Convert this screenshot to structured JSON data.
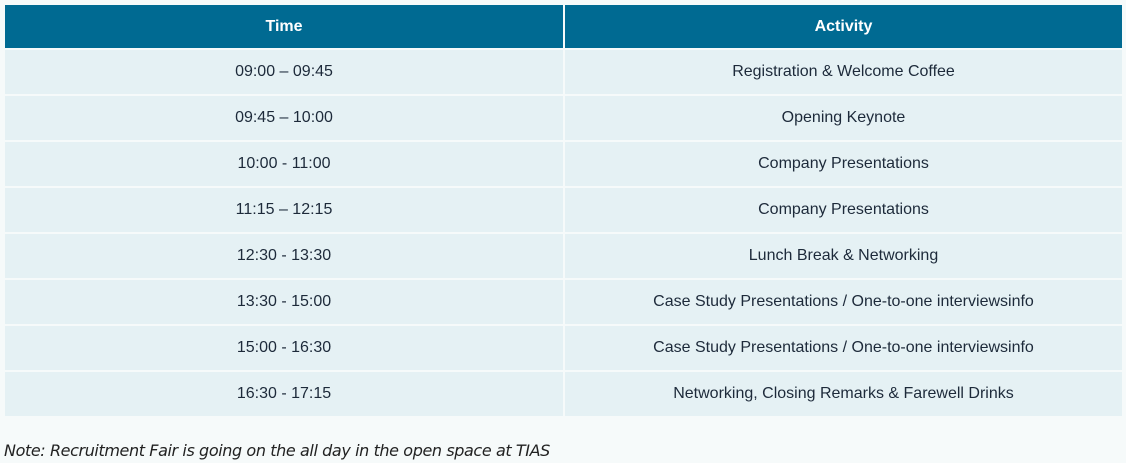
{
  "table": {
    "header": [
      "Time",
      "Activity"
    ],
    "rows": [
      [
        "09:00 – 09:45",
        "Registration & Welcome Coffee"
      ],
      [
        "09:45 – 10:00",
        "Opening Keynote"
      ],
      [
        "10:00 - 11:00",
        "Company Presentations"
      ],
      [
        "11:15 – 12:15",
        "Company Presentations"
      ],
      [
        "12:30 - 13:30",
        "Lunch Break & Networking"
      ],
      [
        "13:30 - 15:00",
        "Case Study Presentations / One-to-one interviewsinfo"
      ],
      [
        "15:00 - 16:30",
        "Case Study Presentations / One-to-one interviewsinfo"
      ],
      [
        "16:30 - 17:15",
        "Networking, Closing Remarks & Farewell Drinks"
      ]
    ]
  },
  "note": "Note: Recruitment Fair is going on the all day in the open space at TIAS"
}
